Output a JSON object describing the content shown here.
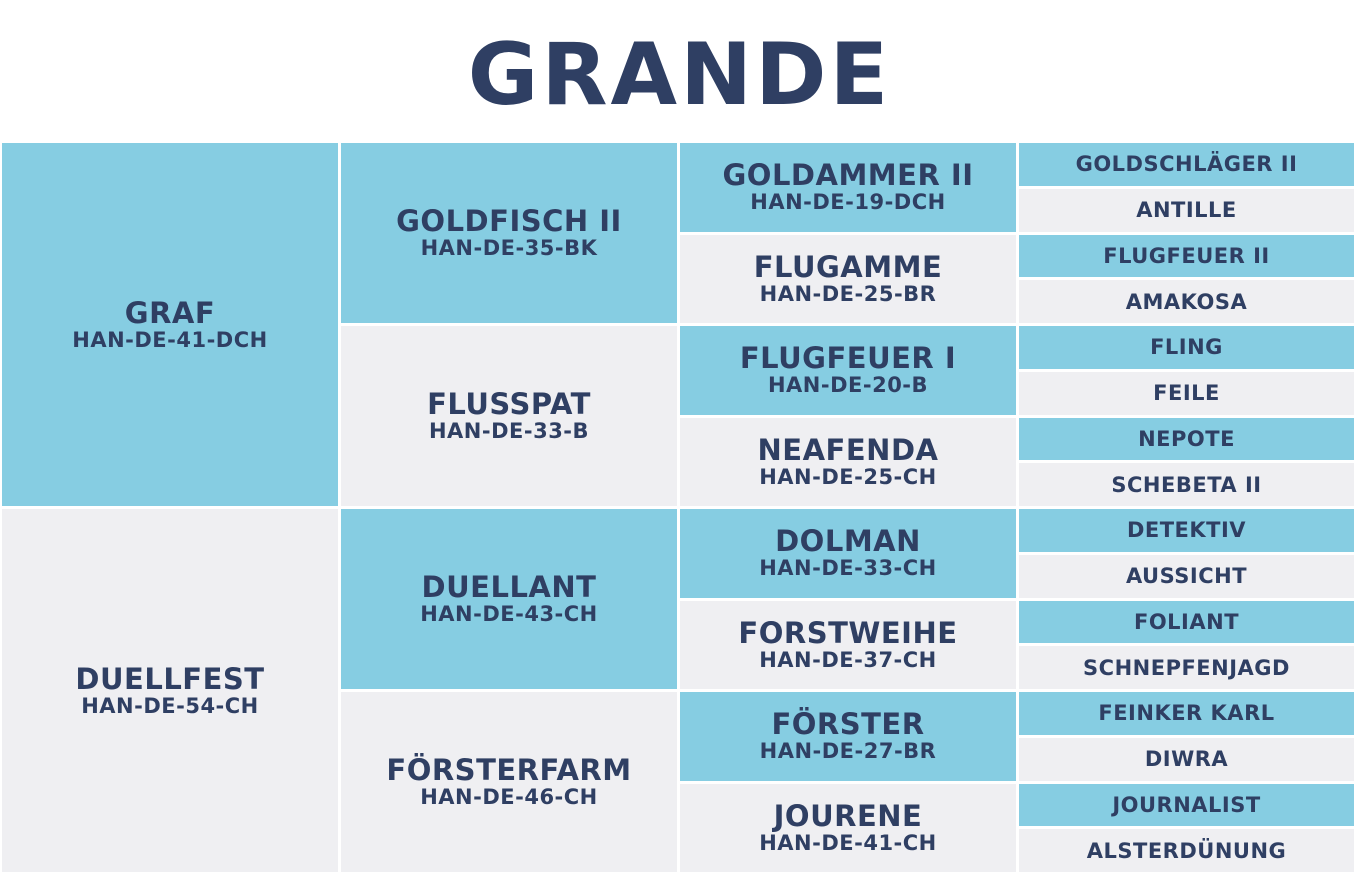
{
  "title": "GRANDE",
  "sire": {
    "name": "GRAF",
    "reg": "HAN-DE-41-DCH"
  },
  "dam": {
    "name": "DUELLFEST",
    "reg": "HAN-DE-54-CH"
  },
  "grandparents": [
    {
      "name": "GOLDFISCH II",
      "reg": "HAN-DE-35-BK"
    },
    {
      "name": "FLUSSPAT",
      "reg": "HAN-DE-33-B"
    },
    {
      "name": "DUELLANT",
      "reg": "HAN-DE-43-CH"
    },
    {
      "name": "FÖRSTERFARM",
      "reg": "HAN-DE-46-CH"
    }
  ],
  "great_grandparents": [
    {
      "name": "GOLDAMMER II",
      "reg": "HAN-DE-19-DCH"
    },
    {
      "name": "FLUGAMME",
      "reg": "HAN-DE-25-BR"
    },
    {
      "name": "FLUGFEUER I",
      "reg": "HAN-DE-20-B"
    },
    {
      "name": "NEAFENDA",
      "reg": "HAN-DE-25-CH"
    },
    {
      "name": "DOLMAN",
      "reg": "HAN-DE-33-CH"
    },
    {
      "name": "FORSTWEIHE",
      "reg": "HAN-DE-37-CH"
    },
    {
      "name": "FÖRSTER",
      "reg": "HAN-DE-27-BR"
    },
    {
      "name": "JOURENE",
      "reg": "HAN-DE-41-CH"
    }
  ],
  "great_great_grandparents": [
    "GOLDSCHLÄGER II",
    "ANTILLE",
    "FLUGFEUER II",
    "AMAKOSA",
    "FLING",
    "FEILE",
    "NEPOTE",
    "SCHEBETA II",
    "DETEKTIV",
    "AUSSICHT",
    "FOLIANT",
    "SCHNEPFENJAGD",
    "FEINKER KARL",
    "DIWRA",
    "JOURNALIST",
    "ALSTERDÜNUNG"
  ]
}
